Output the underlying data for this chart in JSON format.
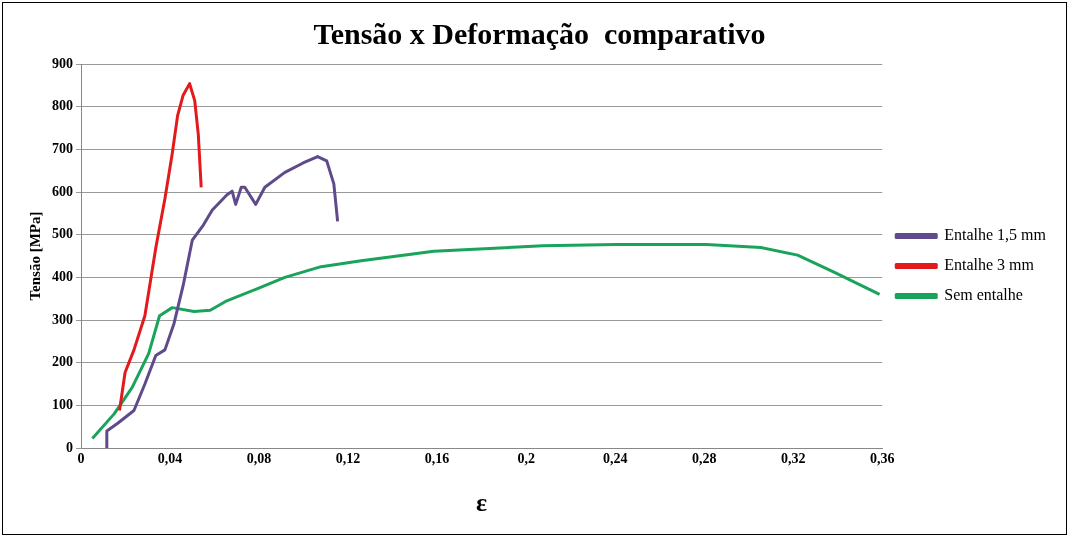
{
  "chart_data": {
    "type": "line",
    "title": "Tensão x Deformação  comparativo",
    "xlabel": "ε",
    "ylabel": "Tensão [MPa]",
    "xlim": [
      0,
      0.36
    ],
    "xticks": [
      0,
      {
        "value": 0.04,
        "label": "0,04"
      },
      {
        "value": 0.08,
        "label": "0,08"
      },
      {
        "value": 0.12,
        "label": "0,12"
      },
      {
        "value": 0.16,
        "label": "0,16"
      },
      {
        "value": 0.2,
        "label": "0,2"
      },
      {
        "value": 0.24,
        "label": "0,24"
      },
      {
        "value": 0.28,
        "label": "0,28"
      },
      {
        "value": 0.32,
        "label": "0,32"
      },
      {
        "value": 0.36,
        "label": "0,36"
      }
    ],
    "ylim": [
      0,
      900
    ],
    "yticks": [
      0,
      100,
      200,
      300,
      400,
      500,
      600,
      700,
      800,
      900
    ],
    "grid": "y",
    "legend": "right",
    "series": [
      {
        "name": "Entalhe 1,5 mm",
        "color": "#5f4b8b",
        "x": [
          0.0116,
          0.0116,
          0.0165,
          0.0238,
          0.0287,
          0.0336,
          0.0377,
          0.0418,
          0.0459,
          0.05,
          0.0549,
          0.059,
          0.0655,
          0.0679,
          0.0695,
          0.072,
          0.0736,
          0.0785,
          0.0826,
          0.0916,
          0.0998,
          0.1063,
          0.1104,
          0.1136,
          0.1153
        ],
        "values": [
          0,
          40,
          58,
          88,
          150,
          217,
          230,
          292,
          381,
          487,
          522,
          558,
          593,
          602,
          571,
          611,
          611,
          571,
          611,
          646,
          668,
          683,
          673,
          619,
          531
        ]
      },
      {
        "name": "Entalhe 3 mm",
        "color": "#e31a1c",
        "x": [
          0.0173,
          0.0198,
          0.0238,
          0.0287,
          0.0336,
          0.0377,
          0.041,
          0.0434,
          0.0459,
          0.0488,
          0.0511,
          0.0527,
          0.054
        ],
        "values": [
          88,
          177,
          230,
          310,
          469,
          584,
          690,
          779,
          827,
          854,
          814,
          735,
          611
        ]
      },
      {
        "name": "Sem entalhe",
        "color": "#1aa35a",
        "x": [
          0.0051,
          0.0149,
          0.023,
          0.0304,
          0.0353,
          0.041,
          0.0508,
          0.0581,
          0.0655,
          0.0785,
          0.0916,
          0.1079,
          0.1259,
          0.1585,
          0.2075,
          0.2402,
          0.281,
          0.3055,
          0.322,
          0.3383,
          0.3588
        ],
        "values": [
          22,
          80,
          142,
          221,
          310,
          329,
          320,
          323,
          345,
          372,
          400,
          425,
          439,
          461,
          474,
          477,
          477,
          470,
          452,
          412,
          360
        ]
      }
    ]
  }
}
